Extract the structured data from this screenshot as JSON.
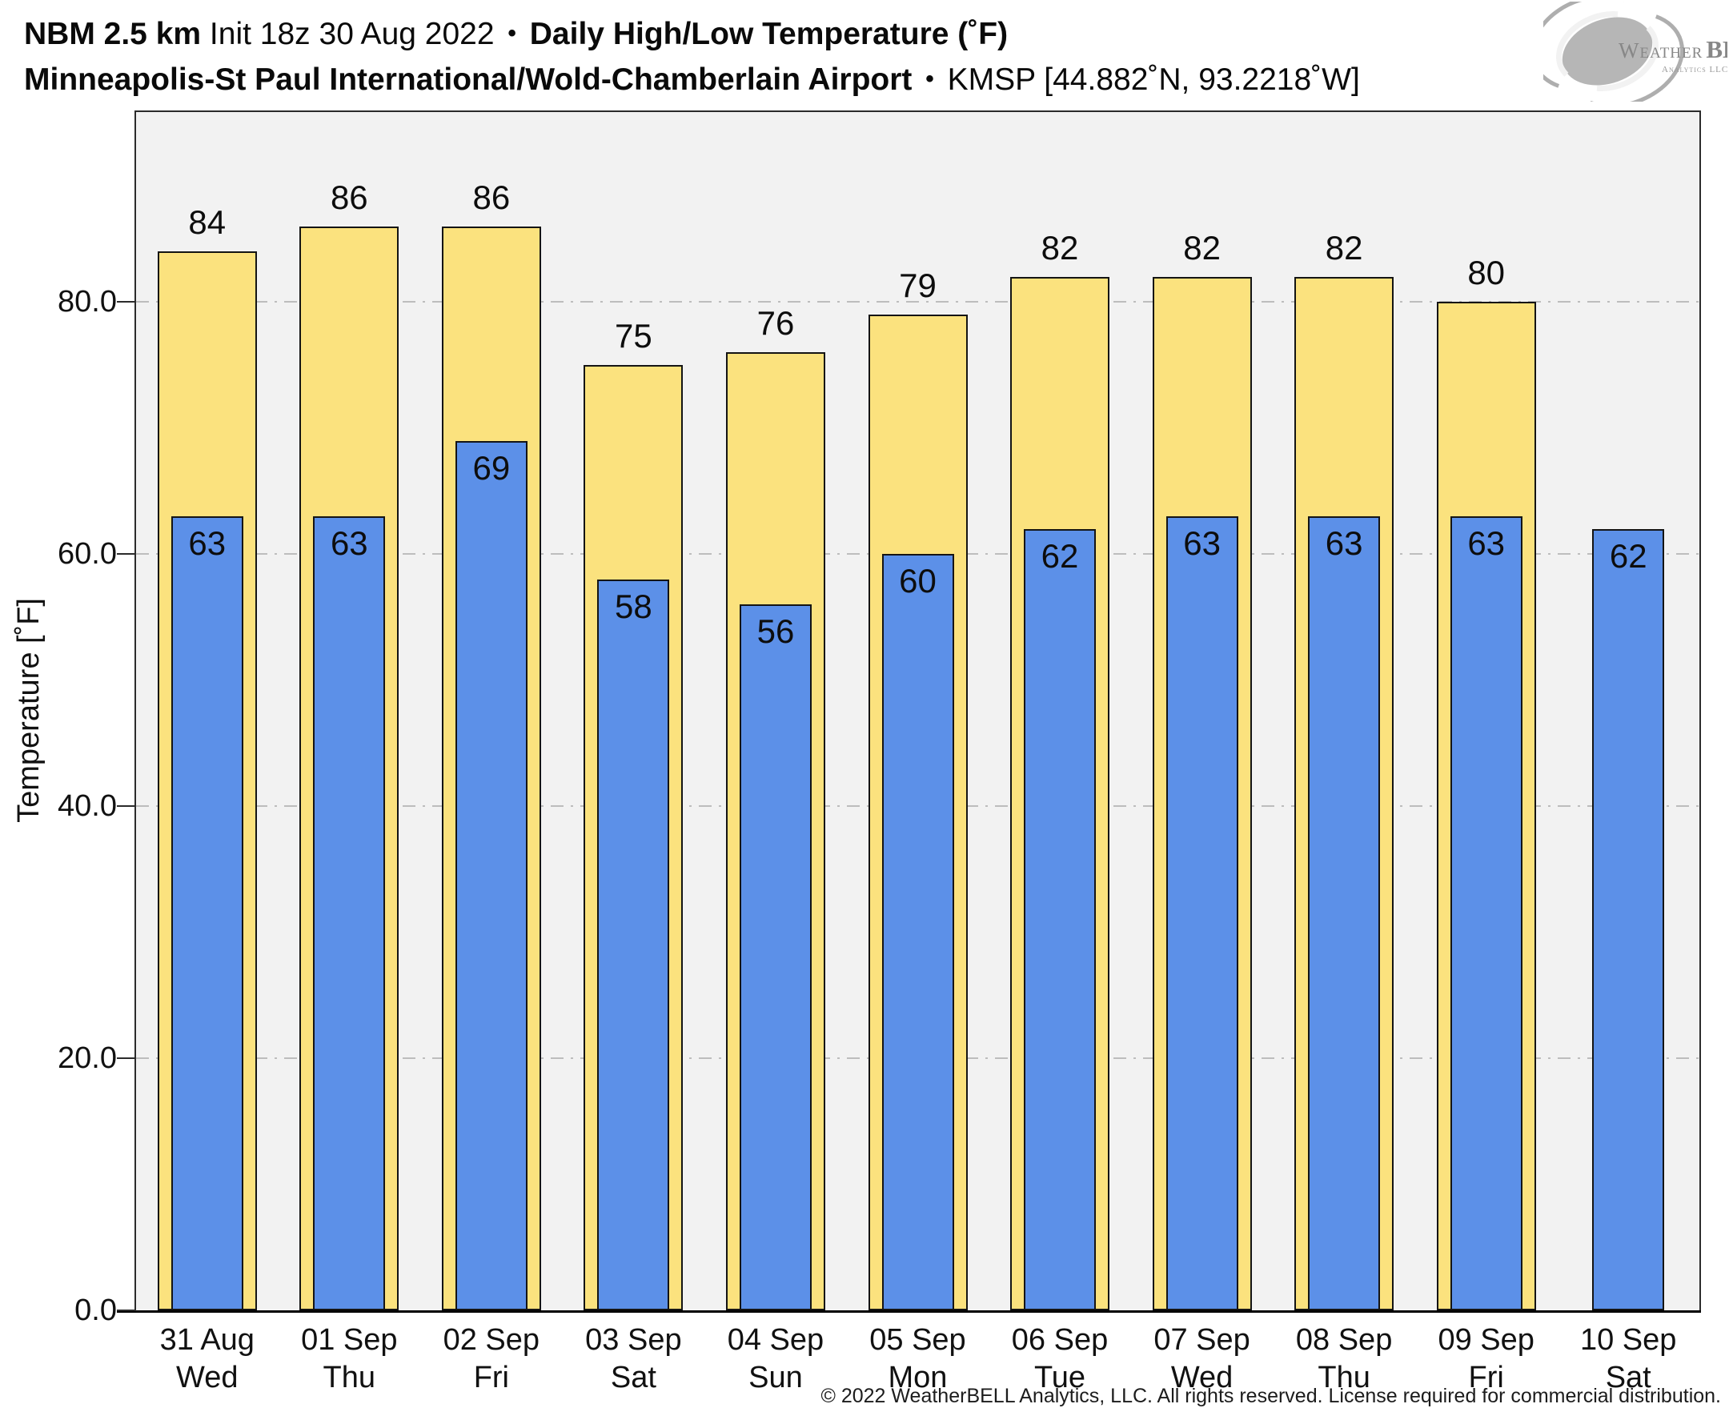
{
  "header": {
    "title_model": "NBM 2.5 km",
    "title_init": "Init 18z 30 Aug 2022",
    "title_sep": "•",
    "title_product": "Daily High/Low Temperature (˚F)",
    "subtitle_station": "Minneapolis-St Paul International/Wold-Chamberlain Airport",
    "subtitle_sep": "•",
    "subtitle_id": "KMSP [44.882˚N, 93.2218˚W]"
  },
  "logo": {
    "text1": "Weather",
    "text2": "BELL",
    "tagline": "Analytics LLC"
  },
  "footer": {
    "copyright": "© 2022 WeatherBELL Analytics, LLC. All rights reserved. License required for commercial distribution."
  },
  "chart_data": {
    "type": "bar",
    "title": "NBM 2.5 km Daily High/Low Temperature (˚F) — KMSP",
    "ylabel": "Temperature [˚F]",
    "ylim": [
      0,
      95.2
    ],
    "yticks": [
      0,
      20,
      40,
      60,
      80
    ],
    "ytick_labels": [
      "0.0",
      "20.0",
      "40.0",
      "60.0",
      "80.0"
    ],
    "grid": "horizontal dash-dot at yticks",
    "legend": "none",
    "categories": [
      "31 Aug",
      "01 Sep",
      "02 Sep",
      "03 Sep",
      "04 Sep",
      "05 Sep",
      "06 Sep",
      "07 Sep",
      "08 Sep",
      "09 Sep",
      "10 Sep"
    ],
    "weekdays": [
      "Wed",
      "Thu",
      "Fri",
      "Sat",
      "Sun",
      "Mon",
      "Tue",
      "Wed",
      "Thu",
      "Fri",
      "Sat"
    ],
    "series": [
      {
        "name": "High",
        "color": "#fbe27e",
        "values": [
          84,
          86,
          86,
          75,
          76,
          79,
          82,
          82,
          82,
          80,
          null
        ]
      },
      {
        "name": "Low",
        "color": "#5c90e8",
        "values": [
          63,
          63,
          69,
          58,
          56,
          60,
          62,
          63,
          63,
          63,
          62
        ]
      }
    ],
    "colors": {
      "plot_background": "#f2f2f2",
      "grid_color": "#bdbdbd",
      "bar_border": "#141414",
      "axis_color": "#2b2b2b",
      "text_color": "#0d0d0d"
    }
  }
}
